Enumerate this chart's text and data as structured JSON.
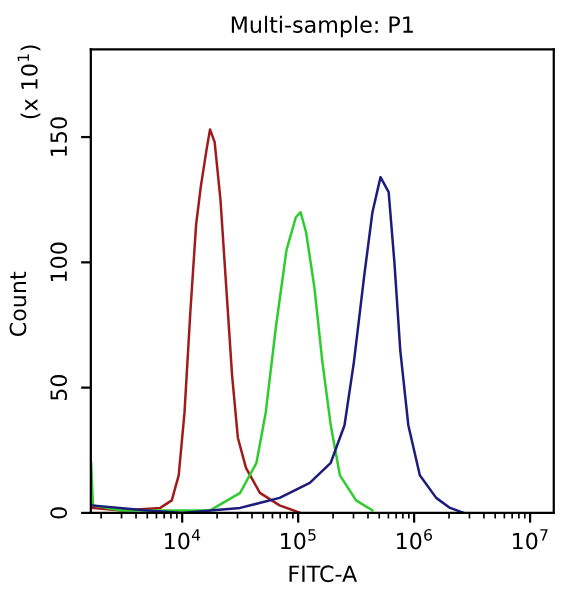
{
  "chart_data": {
    "type": "line",
    "title": "Multi-sample: P1",
    "xlabel": "FITC-A",
    "ylabel": "Count",
    "annotations": [
      "(x 10$^{1}$)"
    ],
    "log": "x",
    "grid": false,
    "legend": false,
    "xlim": [
      1630,
      16000000
    ],
    "ylim": [
      0,
      185
    ],
    "xticks": [
      {
        "value": 10000,
        "label": "10$^{4}$"
      },
      {
        "value": 100000,
        "label": "10$^{5}$"
      },
      {
        "value": 1000000,
        "label": "10$^{6}$"
      },
      {
        "value": 10000000,
        "label": "10$^{7}$"
      }
    ],
    "yticks": [
      0,
      50,
      100,
      150
    ],
    "series": [
      {
        "color": "#a01c1c",
        "x": [
          1660,
          3000,
          6460,
          8130,
          9330,
          10470,
          11750,
          13180,
          14450,
          16220,
          17380,
          19050,
          21380,
          23990,
          26920,
          30200,
          35480,
          46770,
          69180,
          104700
        ],
        "values": [
          2,
          1,
          2,
          5,
          15,
          40,
          80,
          115,
          130,
          145,
          153,
          148,
          125,
          90,
          55,
          30,
          18,
          8,
          3,
          0
        ]
      },
      {
        "color": "#2ecc2e",
        "x": [
          1640,
          1700,
          3000,
          17400,
          31600,
          43700,
          52500,
          64600,
          79400,
          95500,
          105000,
          117000,
          138000,
          162000,
          191000,
          229000,
          316000,
          437000
        ],
        "values": [
          20,
          3,
          1,
          1,
          8,
          20,
          40,
          75,
          105,
          118,
          120,
          112,
          90,
          60,
          35,
          15,
          5,
          1
        ]
      },
      {
        "color": "#1c1c7a",
        "x": [
          1660,
          5000,
          10000,
          31600,
          69200,
          126000,
          191000,
          251000,
          302000,
          372000,
          437000,
          513000,
          603000,
          676000,
          759000,
          891000,
          1120000,
          1550000,
          2040000,
          2690000
        ],
        "values": [
          3,
          1,
          0,
          2,
          6,
          12,
          20,
          35,
          60,
          95,
          120,
          134,
          128,
          100,
          65,
          35,
          15,
          6,
          2,
          0
        ]
      }
    ]
  }
}
